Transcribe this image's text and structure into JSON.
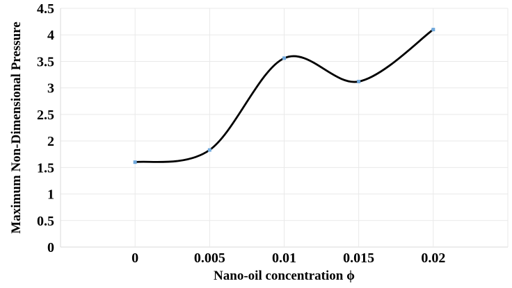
{
  "chart_data": {
    "type": "line",
    "title": "",
    "xlabel": "Nano-oil concentration ϕ",
    "ylabel": "Maximum Non-Dimensional Pressure",
    "x": [
      0,
      0.005,
      0.01,
      0.015,
      0.02
    ],
    "x_ticklabels": [
      "0",
      "0.005",
      "0.01",
      "0.015",
      "0.02"
    ],
    "series": [
      {
        "name": "Maximum Non-Dimensional Pressure",
        "values": [
          1.6,
          1.83,
          3.56,
          3.12,
          4.1
        ]
      }
    ],
    "ylim": [
      0,
      4.5
    ],
    "ytick_step": 0.5,
    "y_ticklabels": [
      "0",
      "0.5",
      "1",
      "1.5",
      "2",
      "2.5",
      "3",
      "3.5",
      "4",
      "4.5"
    ],
    "grid": "both",
    "legend": "none",
    "smooth": true,
    "line_color": "#000000",
    "marker_color": "#6fa8dc",
    "gridline_color": "#e9e9e9",
    "axisline_color": "#d9d9d9",
    "text_color": "#000000"
  }
}
